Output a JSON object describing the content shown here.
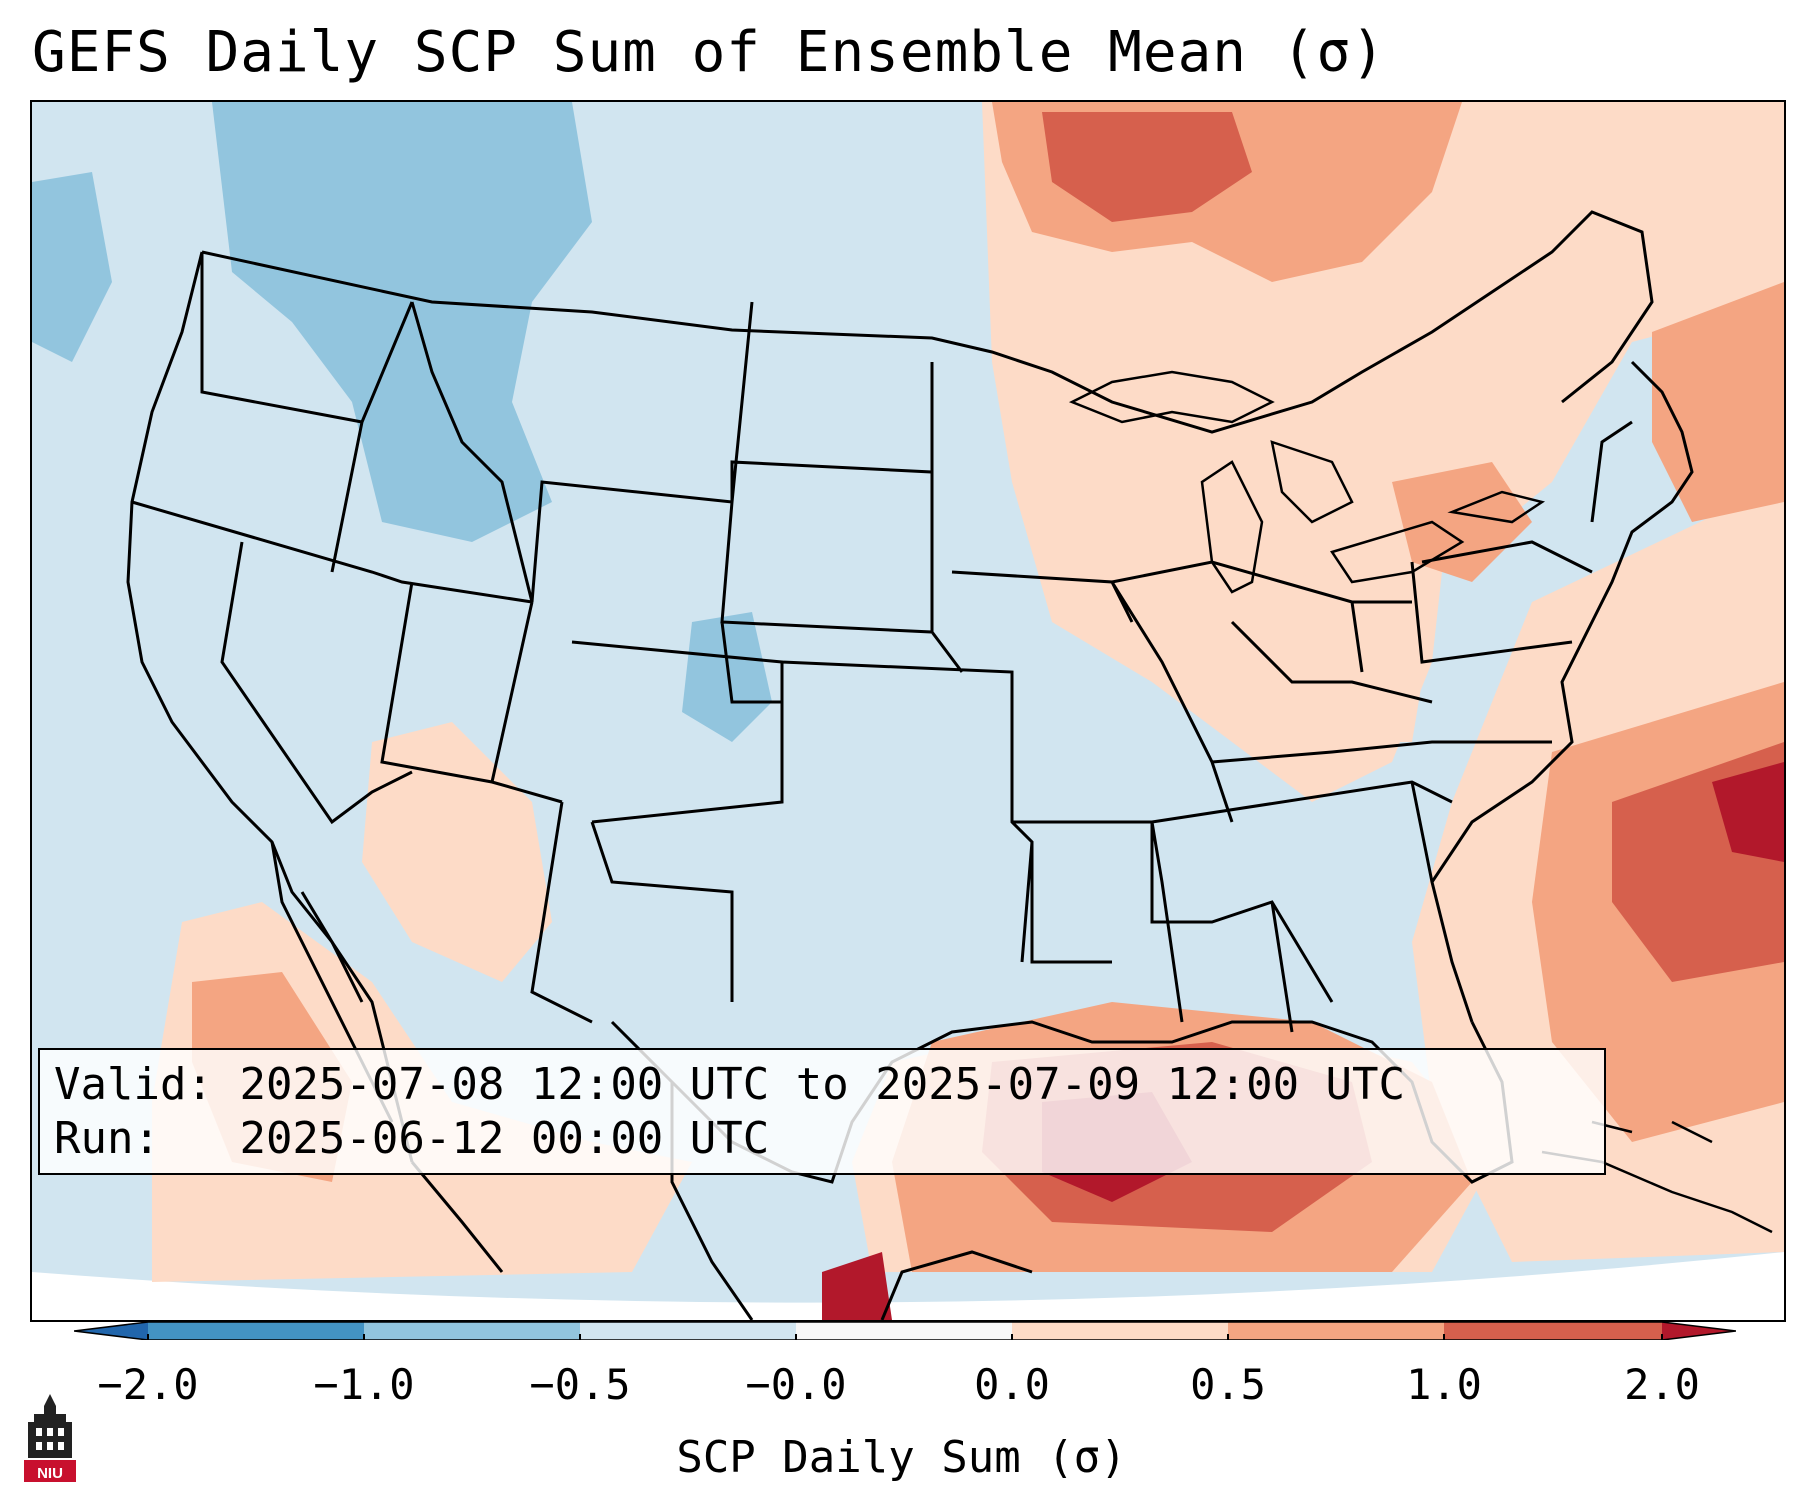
{
  "title": "GEFS Daily SCP Sum of Ensemble Mean (σ)",
  "info": {
    "valid_label": "Valid:",
    "valid_value": "2025-07-08 12:00 UTC to 2025-07-09 12:00 UTC",
    "run_label": "Run:",
    "run_value": "2025-06-12 00:00 UTC"
  },
  "colorbar": {
    "label": "SCP Daily Sum (σ)",
    "ticks": [
      "−2.0",
      "−1.0",
      "−0.5",
      "−0.0",
      "0.0",
      "0.5",
      "1.0",
      "2.0"
    ],
    "colors": [
      "#4393c3",
      "#92c5de",
      "#d1e5f0",
      "#f7f7f7",
      "#fddbc7",
      "#f4a582",
      "#d6604d"
    ],
    "extend_low_color": "#2166ac",
    "extend_high_color": "#b2182b"
  },
  "logo": {
    "text": "NIU"
  },
  "palette": {
    "ocean": "#d1e5f0",
    "neg1": "#92c5de",
    "pos0": "#fddbc7",
    "pos1": "#f4a582",
    "pos2": "#d6604d",
    "pos3": "#b2182b",
    "border": "#000000"
  }
}
